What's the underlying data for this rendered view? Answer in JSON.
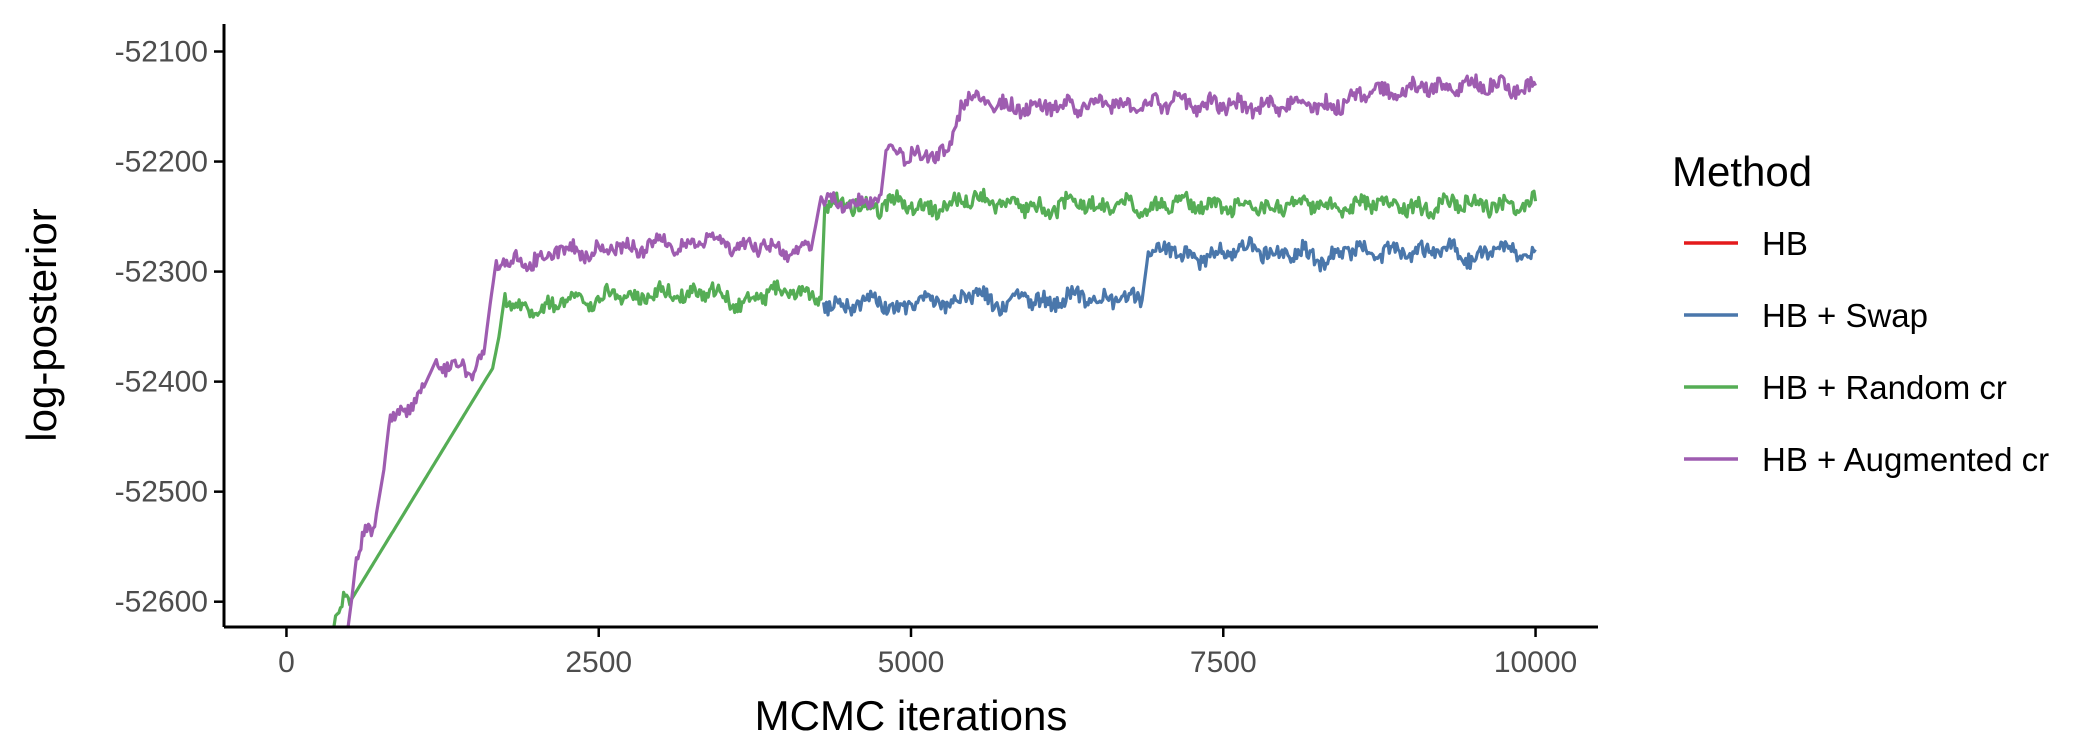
{
  "chart_data": {
    "type": "line",
    "xlabel": "MCMC iterations",
    "ylabel": "log-posterior",
    "xlim": [
      -500,
      10500
    ],
    "ylim": [
      -52623,
      -52075
    ],
    "x_ticks": [
      0,
      2500,
      5000,
      7500,
      10000
    ],
    "x_tick_labels": [
      "0",
      "2500",
      "5000",
      "7500",
      "10000"
    ],
    "y_ticks": [
      -52600,
      -52500,
      -52400,
      -52300,
      -52200,
      -52100
    ],
    "y_tick_labels": [
      "-52600",
      "-52500",
      "-52400",
      "-52300",
      "-52200",
      "-52100"
    ],
    "grid": false,
    "legend": {
      "title": "Method",
      "position": "right",
      "entries": [
        "HB",
        "HB + Swap",
        "HB + Random cr",
        "HB + Augmented cr"
      ]
    },
    "series": [
      {
        "name": "HB",
        "color": "#e41a1c",
        "x": [],
        "y": []
      },
      {
        "name": "HB + Swap",
        "color": "#4a77ab",
        "x": [
          4300,
          4500,
          4700,
          4900,
          5100,
          5300,
          5500,
          5700,
          5900,
          6100,
          6300,
          6500,
          6700,
          6850,
          6900,
          7100,
          7300,
          7500,
          7700,
          7900,
          8100,
          8300,
          8500,
          8700,
          8900,
          9100,
          9300,
          9500,
          9700,
          9900,
          10000
        ],
        "y": [
          -52328,
          -52333,
          -52323,
          -52336,
          -52326,
          -52330,
          -52318,
          -52333,
          -52322,
          -52330,
          -52320,
          -52328,
          -52322,
          -52326,
          -52282,
          -52280,
          -52290,
          -52282,
          -52276,
          -52285,
          -52280,
          -52290,
          -52278,
          -52285,
          -52280,
          -52283,
          -52276,
          -52290,
          -52278,
          -52285,
          -52280
        ]
      },
      {
        "name": "HB + Random cr",
        "color": "#55ad55",
        "x": [
          380,
          420,
          470,
          520,
          1650,
          1700,
          1750,
          1800,
          1900,
          2000,
          2200,
          2400,
          2600,
          2800,
          3000,
          3200,
          3400,
          3600,
          3800,
          4000,
          4200,
          4280,
          4310,
          4500,
          4700,
          4900,
          5100,
          5300,
          5500,
          5700,
          5900,
          6100,
          6300,
          6500,
          6700,
          6900,
          7100,
          7300,
          7500,
          7700,
          7900,
          8100,
          8300,
          8500,
          8700,
          8900,
          9100,
          9300,
          9500,
          9700,
          9900,
          10000
        ],
        "y": [
          -52623,
          -52610,
          -52595,
          -52598,
          -52388,
          -52360,
          -52320,
          -52335,
          -52330,
          -52338,
          -52325,
          -52330,
          -52320,
          -52325,
          -52318,
          -52322,
          -52315,
          -52330,
          -52320,
          -52318,
          -52322,
          -52325,
          -52240,
          -52238,
          -52242,
          -52236,
          -52244,
          -52240,
          -52232,
          -52238,
          -52240,
          -52244,
          -52236,
          -52242,
          -52238,
          -52244,
          -52236,
          -52240,
          -52242,
          -52238,
          -52244,
          -52236,
          -52240,
          -52244,
          -52236,
          -52240,
          -52244,
          -52238,
          -52236,
          -52242,
          -52238,
          -52236
        ]
      },
      {
        "name": "HB + Augmented cr",
        "color": "#9e5cb0",
        "x": [
          480,
          520,
          560,
          620,
          680,
          720,
          780,
          820,
          880,
          950,
          1000,
          1100,
          1200,
          1300,
          1400,
          1500,
          1580,
          1630,
          1680,
          1750,
          1850,
          1950,
          2050,
          2150,
          2250,
          2400,
          2600,
          2800,
          3000,
          3200,
          3400,
          3600,
          3800,
          4000,
          4200,
          4280,
          4320,
          4500,
          4700,
          4760,
          4800,
          4900,
          5100,
          5300,
          5360,
          5400,
          5500,
          5700,
          5900,
          6100,
          6300,
          6500,
          6700,
          6900,
          7100,
          7300,
          7500,
          7700,
          7900,
          8100,
          8300,
          8500,
          8700,
          8900,
          9100,
          9300,
          9500,
          9700,
          9900,
          10000
        ],
        "y": [
          -52623,
          -52600,
          -52560,
          -52540,
          -52540,
          -52520,
          -52480,
          -52440,
          -52430,
          -52425,
          -52420,
          -52405,
          -52380,
          -52390,
          -52385,
          -52392,
          -52375,
          -52330,
          -52290,
          -52295,
          -52290,
          -52292,
          -52288,
          -52280,
          -52278,
          -52282,
          -52276,
          -52280,
          -52272,
          -52278,
          -52268,
          -52280,
          -52275,
          -52282,
          -52280,
          -52232,
          -52235,
          -52238,
          -52236,
          -52230,
          -52190,
          -52192,
          -52196,
          -52190,
          -52168,
          -52145,
          -52140,
          -52148,
          -52152,
          -52148,
          -52150,
          -52146,
          -52150,
          -52148,
          -52145,
          -52150,
          -52147,
          -52151,
          -52149,
          -52146,
          -52150,
          -52145,
          -52135,
          -52140,
          -52130,
          -52135,
          -52128,
          -52132,
          -52136,
          -52131
        ]
      }
    ]
  }
}
